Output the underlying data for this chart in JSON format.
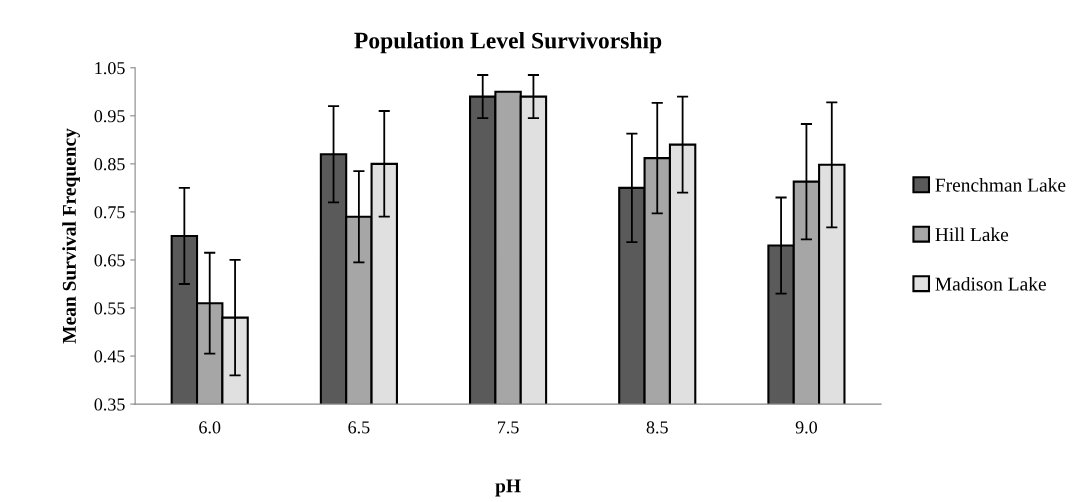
{
  "chart_data": {
    "type": "bar",
    "title": "Population Level Survivorship",
    "xlabel": "pH",
    "ylabel": "Mean Survival Frequency",
    "categories": [
      "6.0",
      "6.5",
      "7.5",
      "8.5",
      "9.0"
    ],
    "series": [
      {
        "name": "Frenchman Lake",
        "color": "#5a5a5a",
        "values": [
          0.7,
          0.87,
          0.99,
          0.8,
          0.68
        ],
        "errors": [
          0.1,
          0.1,
          0.045,
          0.113,
          0.1
        ]
      },
      {
        "name": "Hill Lake",
        "color": "#a6a6a6",
        "values": [
          0.56,
          0.74,
          1.0,
          0.862,
          0.813
        ],
        "errors": [
          0.105,
          0.095,
          null,
          0.115,
          0.12
        ]
      },
      {
        "name": "Madison Lake",
        "color": "#e0e0e0",
        "values": [
          0.53,
          0.85,
          0.99,
          0.89,
          0.848
        ],
        "errors": [
          0.12,
          0.11,
          0.045,
          0.1,
          0.13
        ]
      }
    ],
    "ylim": [
      0.35,
      1.05
    ],
    "yticks": [
      {
        "value": 0.35,
        "label": "0.35"
      },
      {
        "value": 0.45,
        "label": "0.45"
      },
      {
        "value": 0.55,
        "label": "0.55"
      },
      {
        "value": 0.65,
        "label": "0.65"
      },
      {
        "value": 0.75,
        "label": "0.75"
      },
      {
        "value": 0.85,
        "label": "0.85"
      },
      {
        "value": 0.95,
        "label": "0.95"
      },
      {
        "value": 1.05,
        "label": "1.05"
      }
    ],
    "grid": false,
    "legend": "right"
  }
}
